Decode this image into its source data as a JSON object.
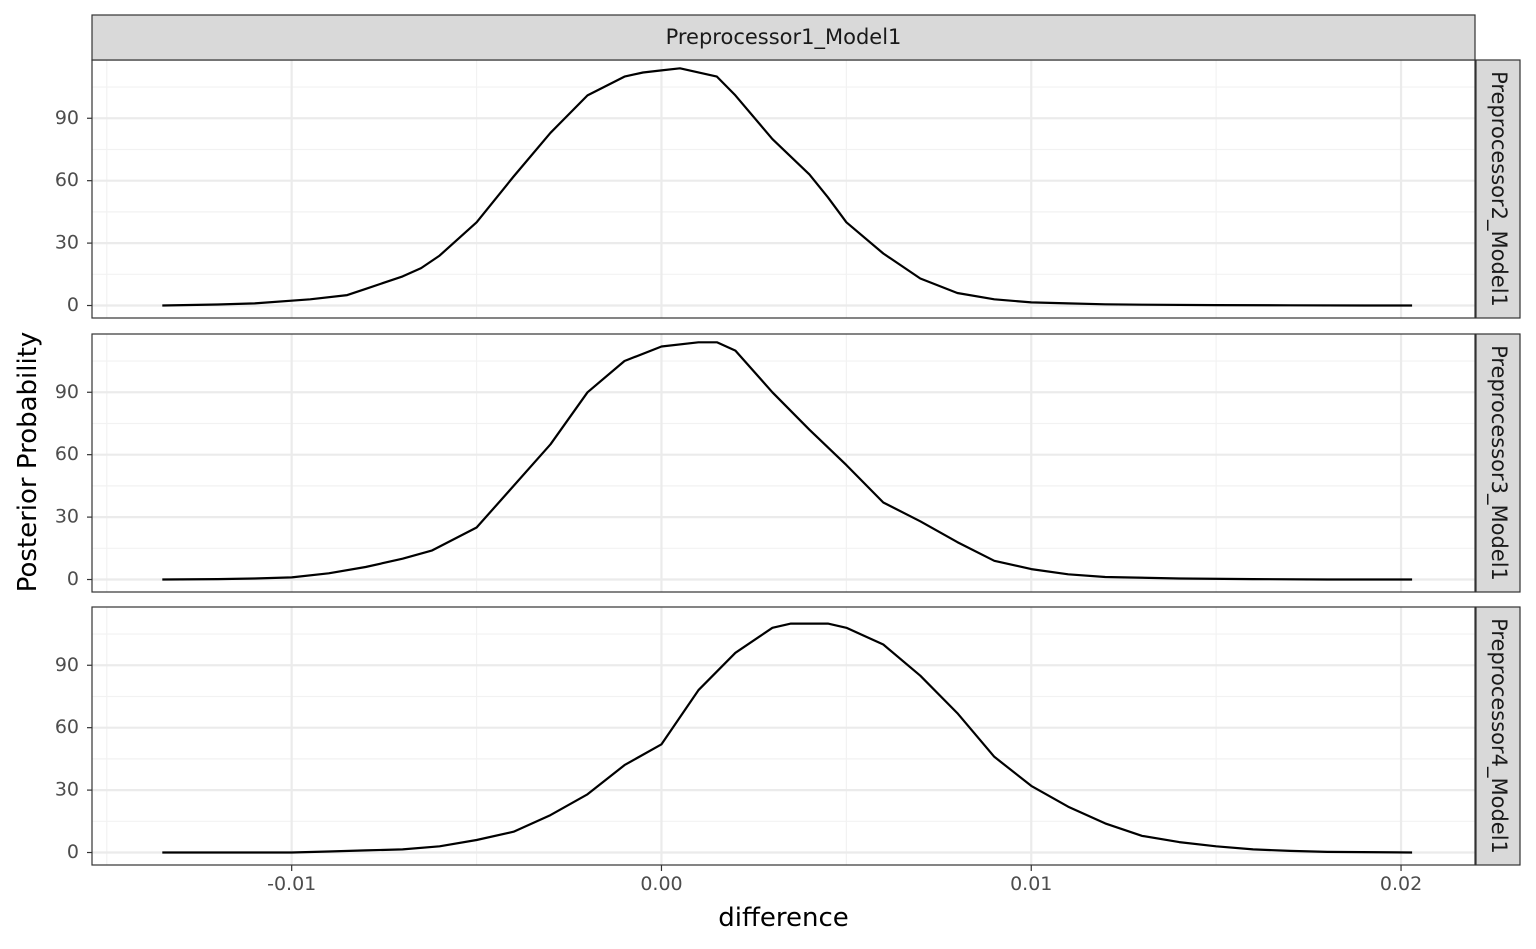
{
  "chart_data": {
    "type": "line",
    "xlabel": "difference",
    "ylabel": "Posterior Probability",
    "column_facet": "Preprocessor1_Model1",
    "xlim": [
      -0.0154,
      0.022
    ],
    "ylim": [
      -6,
      118
    ],
    "x_ticks": [
      -0.01,
      0.0,
      0.01,
      0.02
    ],
    "x_tick_labels": [
      "-0.01",
      "0.00",
      "0.01",
      "0.02"
    ],
    "x_minor_ticks": [
      -0.015,
      -0.005,
      0.005,
      0.015
    ],
    "y_ticks": [
      0,
      30,
      60,
      90
    ],
    "y_tick_labels": [
      "0",
      "30",
      "60",
      "90"
    ],
    "y_minor_ticks": [
      15,
      45,
      75,
      105
    ],
    "grid": true,
    "line_color": "#000000",
    "panels": [
      {
        "name": "Preprocessor2_Model1",
        "x": [
          -0.0135,
          -0.012,
          -0.011,
          -0.0095,
          -0.0085,
          -0.008,
          -0.007,
          -0.0065,
          -0.006,
          -0.005,
          -0.004,
          -0.003,
          -0.002,
          -0.001,
          -0.0005,
          0.0,
          0.0005,
          0.0015,
          0.002,
          0.003,
          0.004,
          0.0045,
          0.005,
          0.006,
          0.007,
          0.008,
          0.009,
          0.01,
          0.011,
          0.012,
          0.013,
          0.015,
          0.017,
          0.019,
          0.0203
        ],
        "y": [
          0,
          0.5,
          1,
          3,
          5,
          8,
          14,
          18,
          24,
          40,
          62,
          83,
          101,
          110,
          112,
          113,
          114,
          110,
          101,
          80,
          63,
          52,
          40,
          25,
          13,
          6,
          3,
          1.5,
          1,
          0.6,
          0.4,
          0.2,
          0.1,
          0,
          0
        ]
      },
      {
        "name": "Preprocessor3_Model1",
        "x": [
          -0.0135,
          -0.012,
          -0.011,
          -0.01,
          -0.009,
          -0.008,
          -0.007,
          -0.0062,
          -0.005,
          -0.004,
          -0.003,
          -0.002,
          -0.001,
          0.0,
          0.001,
          0.0015,
          0.002,
          0.003,
          0.004,
          0.005,
          0.006,
          0.007,
          0.008,
          0.009,
          0.01,
          0.011,
          0.012,
          0.014,
          0.016,
          0.018,
          0.0203
        ],
        "y": [
          0,
          0.2,
          0.5,
          1,
          3,
          6,
          10,
          14,
          25,
          45,
          65,
          90,
          105,
          112,
          114,
          114,
          110,
          90,
          72,
          55,
          37,
          28,
          18,
          9,
          5,
          2.5,
          1.2,
          0.5,
          0.2,
          0,
          0
        ]
      },
      {
        "name": "Preprocessor4_Model1",
        "x": [
          -0.0135,
          -0.012,
          -0.011,
          -0.01,
          -0.009,
          -0.008,
          -0.007,
          -0.006,
          -0.005,
          -0.004,
          -0.003,
          -0.002,
          -0.001,
          0.0,
          0.001,
          0.002,
          0.003,
          0.0035,
          0.004,
          0.0045,
          0.005,
          0.006,
          0.007,
          0.008,
          0.009,
          0.01,
          0.011,
          0.012,
          0.013,
          0.014,
          0.015,
          0.016,
          0.017,
          0.018,
          0.0203
        ],
        "y": [
          0,
          0,
          0,
          0,
          0.5,
          1,
          1.5,
          3,
          6,
          10,
          18,
          28,
          42,
          52,
          78,
          96,
          108,
          110,
          110,
          110,
          108,
          100,
          85,
          67,
          46,
          32,
          22,
          14,
          8,
          5,
          3,
          1.5,
          0.8,
          0.3,
          0
        ]
      }
    ]
  }
}
